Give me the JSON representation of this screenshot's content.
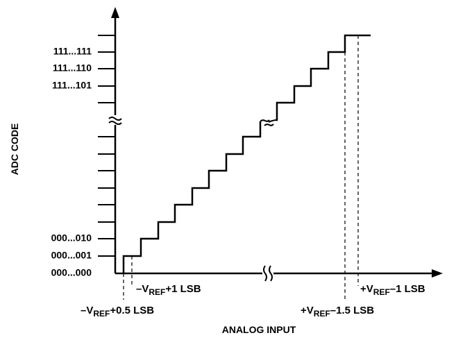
{
  "y_axis": {
    "title": "ADC CODE",
    "top_codes": [
      "111...111",
      "111...110",
      "111...101"
    ],
    "bottom_codes": [
      "000...010",
      "000...001",
      "000...000"
    ]
  },
  "x_axis": {
    "title": "ANALOG INPUT",
    "labels": {
      "neg_plus_half": {
        "sign": "–",
        "main": "V",
        "sub": "REF",
        "suffix": "+0.5 LSB"
      },
      "neg_plus_one": {
        "sign": "–",
        "main": "V",
        "sub": "REF",
        "suffix": "+1 LSB"
      },
      "pos_minus_one_half": {
        "sign": "+",
        "main": "V",
        "sub": "REF",
        "suffix": "–1.5 LSB"
      },
      "pos_minus_one": {
        "sign": "+",
        "main": "V",
        "sub": "REF",
        "suffix": "–1 LSB"
      }
    }
  },
  "break_symbol": "≈",
  "colors": {
    "ink": "#000000",
    "background": "#ffffff"
  }
}
